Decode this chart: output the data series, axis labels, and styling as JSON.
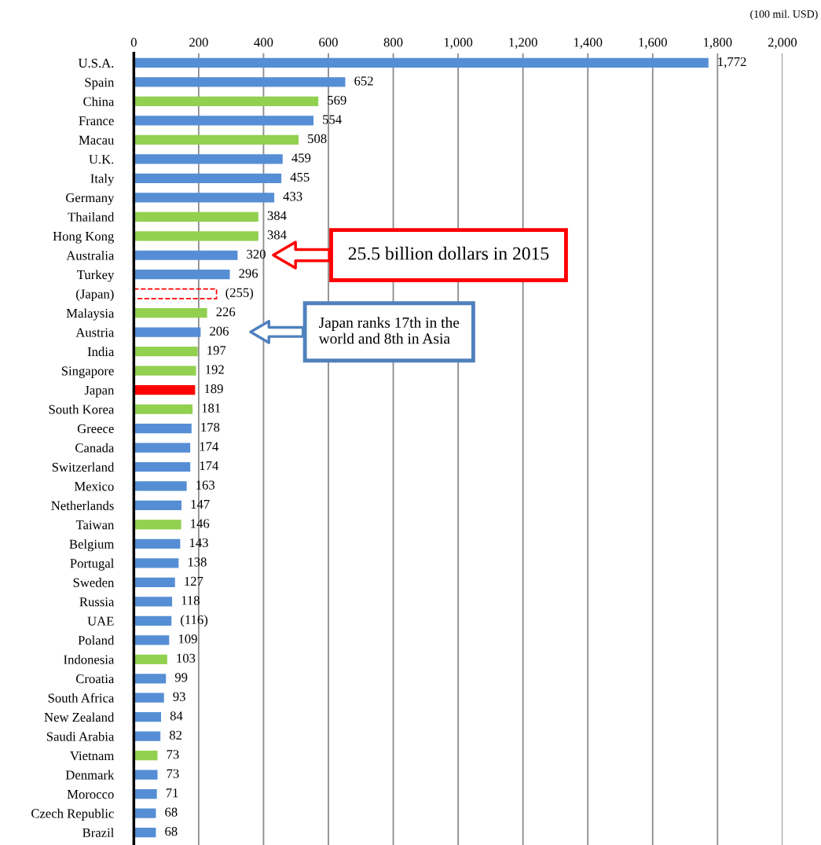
{
  "chart_data": {
    "type": "bar",
    "orientation": "horizontal",
    "xlabel": "(100 mil. USD)",
    "categories": [
      "U.S.A.",
      "Spain",
      "China",
      "France",
      "Macau",
      "U.K.",
      "Italy",
      "Germany",
      "Thailand",
      "Hong Kong",
      "Australia",
      "Turkey",
      "(Japan)",
      "Malaysia",
      "Austria",
      "India",
      "Singapore",
      "Japan",
      "South Korea",
      "Greece",
      "Canada",
      "Switzerland",
      "Mexico",
      "Netherlands",
      "Taiwan",
      "Belgium",
      "Portugal",
      "Sweden",
      "Russia",
      "UAE",
      "Poland",
      "Indonesia",
      "Croatia",
      "South Africa",
      "New Zealand",
      "Saudi Arabia",
      "Vietnam",
      "Denmark",
      "Morocco",
      "Czech Republic",
      "Brazil"
    ],
    "series": [
      {
        "values": [
          1772,
          652,
          569,
          554,
          508,
          459,
          455,
          433,
          384,
          384,
          320,
          296,
          null,
          226,
          206,
          197,
          192,
          189,
          181,
          178,
          174,
          174,
          163,
          147,
          146,
          143,
          138,
          127,
          118,
          116,
          109,
          103,
          99,
          93,
          84,
          82,
          73,
          73,
          71,
          68,
          68
        ],
        "colors": [
          "#558ed5",
          "#558ed5",
          "#92d050",
          "#558ed5",
          "#92d050",
          "#558ed5",
          "#558ed5",
          "#558ed5",
          "#92d050",
          "#92d050",
          "#558ed5",
          "#558ed5",
          null,
          "#92d050",
          "#558ed5",
          "#92d050",
          "#92d050",
          "#ff0000",
          "#92d050",
          "#558ed5",
          "#558ed5",
          "#558ed5",
          "#558ed5",
          "#558ed5",
          "#92d050",
          "#558ed5",
          "#558ed5",
          "#558ed5",
          "#558ed5",
          "#558ed5",
          "#558ed5",
          "#92d050",
          "#558ed5",
          "#558ed5",
          "#558ed5",
          "#558ed5",
          "#92d050",
          "#558ed5",
          "#558ed5",
          "#558ed5",
          "#558ed5"
        ],
        "value_labels": [
          "1,772",
          "652",
          "569",
          "554",
          "508",
          "459",
          "455",
          "433",
          "384",
          "384",
          "320",
          "296",
          null,
          "226",
          "206",
          "197",
          "192",
          "189",
          "181",
          "178",
          "174",
          "174",
          "163",
          "147",
          "146",
          "143",
          "138",
          "127",
          "118",
          "(116)",
          "109",
          "103",
          "99",
          "93",
          "84",
          "82",
          "73",
          "73",
          "71",
          "68",
          "68"
        ]
      },
      {
        "color": "#ff0000",
        "line_style": "dashed",
        "values": [
          null,
          null,
          null,
          null,
          null,
          null,
          null,
          null,
          null,
          null,
          null,
          null,
          255,
          null,
          null,
          null,
          null,
          null,
          null,
          null,
          null,
          null,
          null,
          null,
          null,
          null,
          null,
          null,
          null,
          null,
          null,
          null,
          null,
          null,
          null,
          null,
          null,
          null,
          null,
          null,
          null
        ],
        "value_labels": [
          null,
          null,
          null,
          null,
          null,
          null,
          null,
          null,
          null,
          null,
          null,
          null,
          "(255)",
          null,
          null,
          null,
          null,
          null,
          null,
          null,
          null,
          null,
          null,
          null,
          null,
          null,
          null,
          null,
          null,
          null,
          null,
          null,
          null,
          null,
          null,
          null,
          null,
          null,
          null,
          null,
          null
        ]
      }
    ],
    "xlim": [
      0,
      2000
    ],
    "xticks": [
      0,
      200,
      400,
      600,
      800,
      {
        "value": 1000,
        "label": "1,000"
      },
      {
        "value": 1200,
        "label": "1,200"
      },
      {
        "value": 1400,
        "label": "1,400"
      },
      {
        "value": 1600,
        "label": "1,600"
      },
      {
        "value": 1800,
        "label": "1,800"
      },
      {
        "value": 2000,
        "label": "2,000"
      }
    ],
    "grid": "x",
    "annotations": [
      "25.5 billion dollars in 2015",
      "Japan ranks 17th in the\nworld and 8th in Asia"
    ]
  }
}
